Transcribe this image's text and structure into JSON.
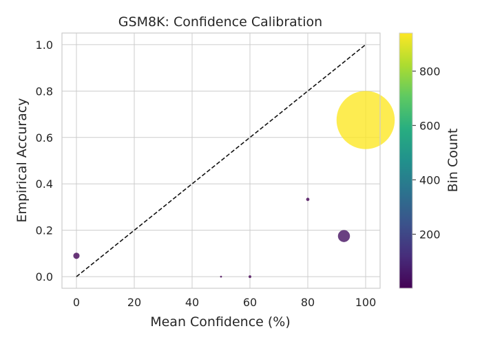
{
  "chart_data": {
    "type": "scatter",
    "title": "GSM8K: Confidence Calibration",
    "xlabel": "Mean Confidence (%)",
    "ylabel": "Empirical Accuracy",
    "xlim": [
      -5,
      105
    ],
    "ylim": [
      -0.05,
      1.05
    ],
    "xticks": [
      0,
      20,
      40,
      60,
      80,
      100
    ],
    "yticks": [
      0.0,
      0.2,
      0.4,
      0.6,
      0.8,
      1.0
    ],
    "xtick_labels": [
      "0",
      "20",
      "40",
      "60",
      "80",
      "100"
    ],
    "ytick_labels": [
      "0.0",
      "0.2",
      "0.4",
      "0.6",
      "0.8",
      "1.0"
    ],
    "grid": true,
    "reference_line": {
      "style": "dashed",
      "color": "#111111",
      "from": [
        0,
        0
      ],
      "to": [
        100,
        1.0
      ]
    },
    "points": [
      {
        "x": 0,
        "y": 0.09,
        "count": 11
      },
      {
        "x": 50,
        "y": 0.0,
        "count": 1
      },
      {
        "x": 60,
        "y": 0.0,
        "count": 2
      },
      {
        "x": 80,
        "y": 0.333,
        "count": 3
      },
      {
        "x": 92.5,
        "y": 0.175,
        "count": 40
      },
      {
        "x": 100,
        "y": 0.675,
        "count": 940
      }
    ],
    "colorbar": {
      "label": "Bin Count",
      "colormap": "viridis",
      "min": 1,
      "max": 940,
      "ticks": [
        200,
        400,
        600,
        800
      ],
      "tick_labels": [
        "200",
        "400",
        "600",
        "800"
      ]
    }
  }
}
